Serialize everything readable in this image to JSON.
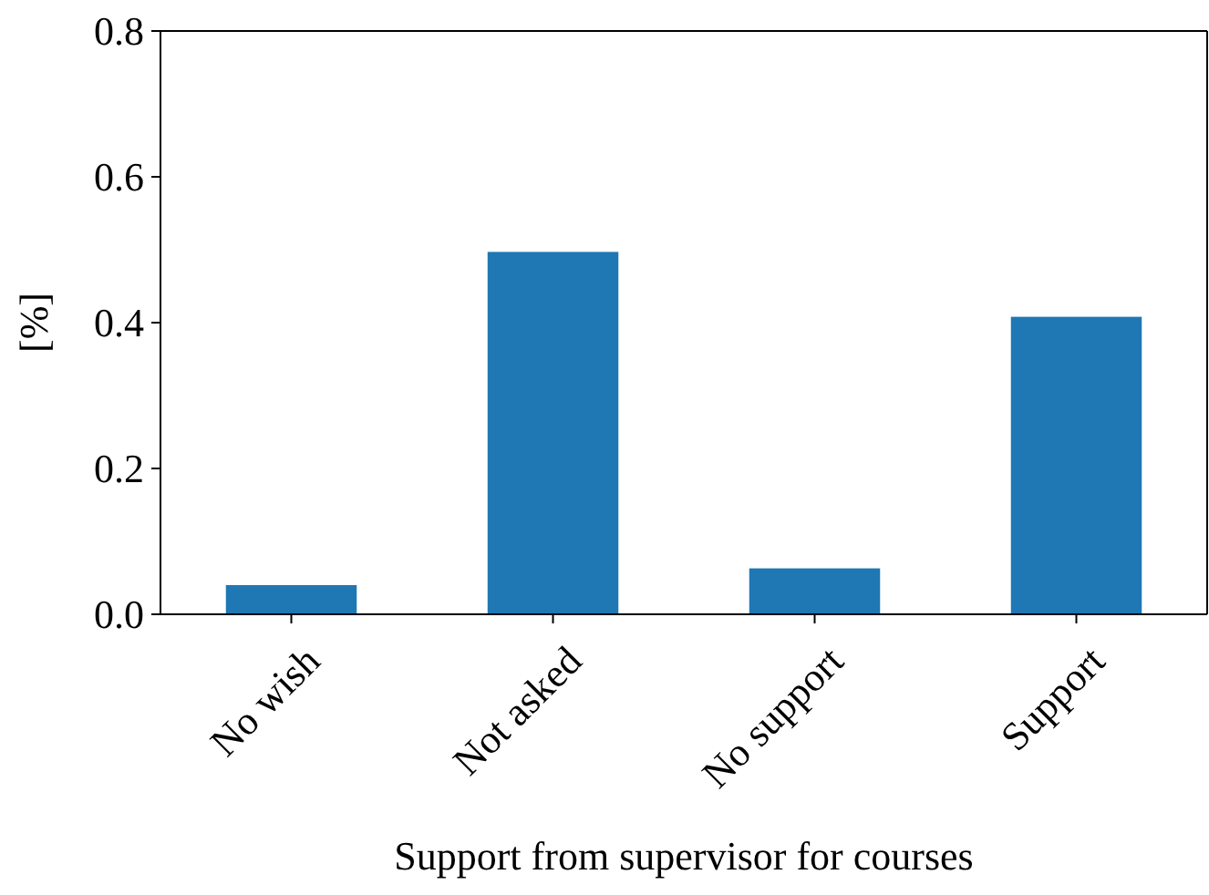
{
  "chart_data": {
    "type": "bar",
    "xlabel": "Support from supervisor for courses",
    "ylabel": "[%]",
    "categories": [
      "No wish",
      "Not asked",
      "No support",
      "Support"
    ],
    "values": [
      0.04,
      0.497,
      0.063,
      0.408
    ],
    "color": "#1f77b4",
    "ylim": [
      0,
      0.8
    ],
    "yticks": [
      {
        "value": 0,
        "label": "0.0"
      },
      {
        "value": 0.2,
        "label": "0.2"
      },
      {
        "value": 0.4,
        "label": "0.4"
      },
      {
        "value": 0.6,
        "label": "0.6"
      },
      {
        "value": 0.8,
        "label": "0.8"
      }
    ]
  }
}
